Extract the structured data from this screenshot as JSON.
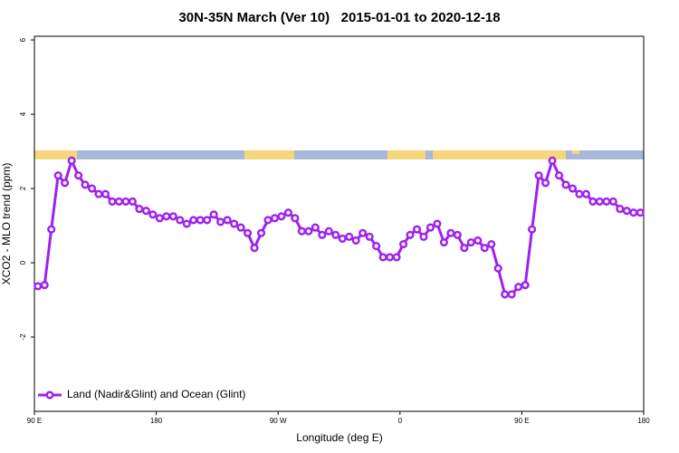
{
  "chart_data": {
    "type": "line",
    "title": "30N-35N March (Ver 10)   2015-01-01 to 2020-12-18",
    "x_label": "Longitude (deg E)",
    "y_label": "XCO2 - MLO trend (ppm)",
    "xlim": [
      90,
      540
    ],
    "ylim": [
      -4,
      6.1
    ],
    "xticks": [
      {
        "value": 90,
        "label": "90 E"
      },
      180,
      {
        "value": 270,
        "label": "90 W"
      },
      {
        "value": 360,
        "label": "0"
      },
      {
        "value": 450,
        "label": "90 E"
      },
      {
        "value": 540,
        "label": "180"
      }
    ],
    "yticks": [
      -2,
      0,
      2,
      4,
      6
    ],
    "legend": "bottom-left",
    "x": [
      92.5,
      97.5,
      102.5,
      107.5,
      112.5,
      117.5,
      122.5,
      127.5,
      132.5,
      137.5,
      142.5,
      147.5,
      152.5,
      157.5,
      162.5,
      167.5,
      172.5,
      177.5,
      182.5,
      187.5,
      192.5,
      197.5,
      202.5,
      207.5,
      212.5,
      217.5,
      222.5,
      227.5,
      232.5,
      237.5,
      242.5,
      247.5,
      252.5,
      257.5,
      262.5,
      267.5,
      272.5,
      277.5,
      282.5,
      287.5,
      292.5,
      297.5,
      302.5,
      307.5,
      312.5,
      317.5,
      322.5,
      327.5,
      332.5,
      337.5,
      342.5,
      347.5,
      352.5,
      357.5,
      362.5,
      367.5,
      372.5,
      377.5,
      382.5,
      387.5,
      392.5,
      397.5,
      402.5,
      407.5,
      412.5,
      417.5,
      422.5,
      427.5,
      432.5,
      437.5,
      442.5,
      447.5,
      452.5,
      457.5,
      462.5,
      467.5,
      472.5,
      477.5,
      482.5,
      487.5,
      492.5,
      497.5,
      502.5,
      507.5,
      512.5,
      517.5,
      522.5,
      527.5,
      532.5,
      537.5
    ],
    "series": [
      {
        "name": "Land (Nadir&Glint) and Ocean (Glint)",
        "color": "#a020f0",
        "values": [
          -0.63,
          -0.6,
          0.9,
          2.35,
          2.15,
          2.75,
          2.35,
          2.1,
          2.0,
          1.85,
          1.85,
          1.65,
          1.65,
          1.65,
          1.65,
          1.45,
          1.4,
          1.3,
          1.2,
          1.25,
          1.25,
          1.15,
          1.05,
          1.15,
          1.15,
          1.15,
          1.3,
          1.1,
          1.15,
          1.05,
          0.95,
          0.8,
          0.4,
          0.8,
          1.15,
          1.2,
          1.25,
          1.35,
          1.2,
          0.85,
          0.85,
          0.95,
          0.75,
          0.85,
          0.75,
          0.65,
          0.7,
          0.6,
          0.8,
          0.7,
          0.45,
          0.15,
          0.15,
          0.15,
          0.5,
          0.75,
          0.9,
          0.7,
          0.95,
          1.05,
          0.55,
          0.8,
          0.75,
          0.4,
          0.55,
          0.6,
          0.4,
          0.5,
          -0.15,
          -0.85,
          -0.85,
          -0.65,
          -0.6,
          0.9,
          2.35,
          2.15,
          2.75,
          2.35,
          2.1,
          2.0,
          1.85,
          1.85,
          1.65,
          1.65,
          1.65,
          1.65,
          1.45,
          1.4,
          1.35,
          1.35
        ]
      }
    ]
  }
}
